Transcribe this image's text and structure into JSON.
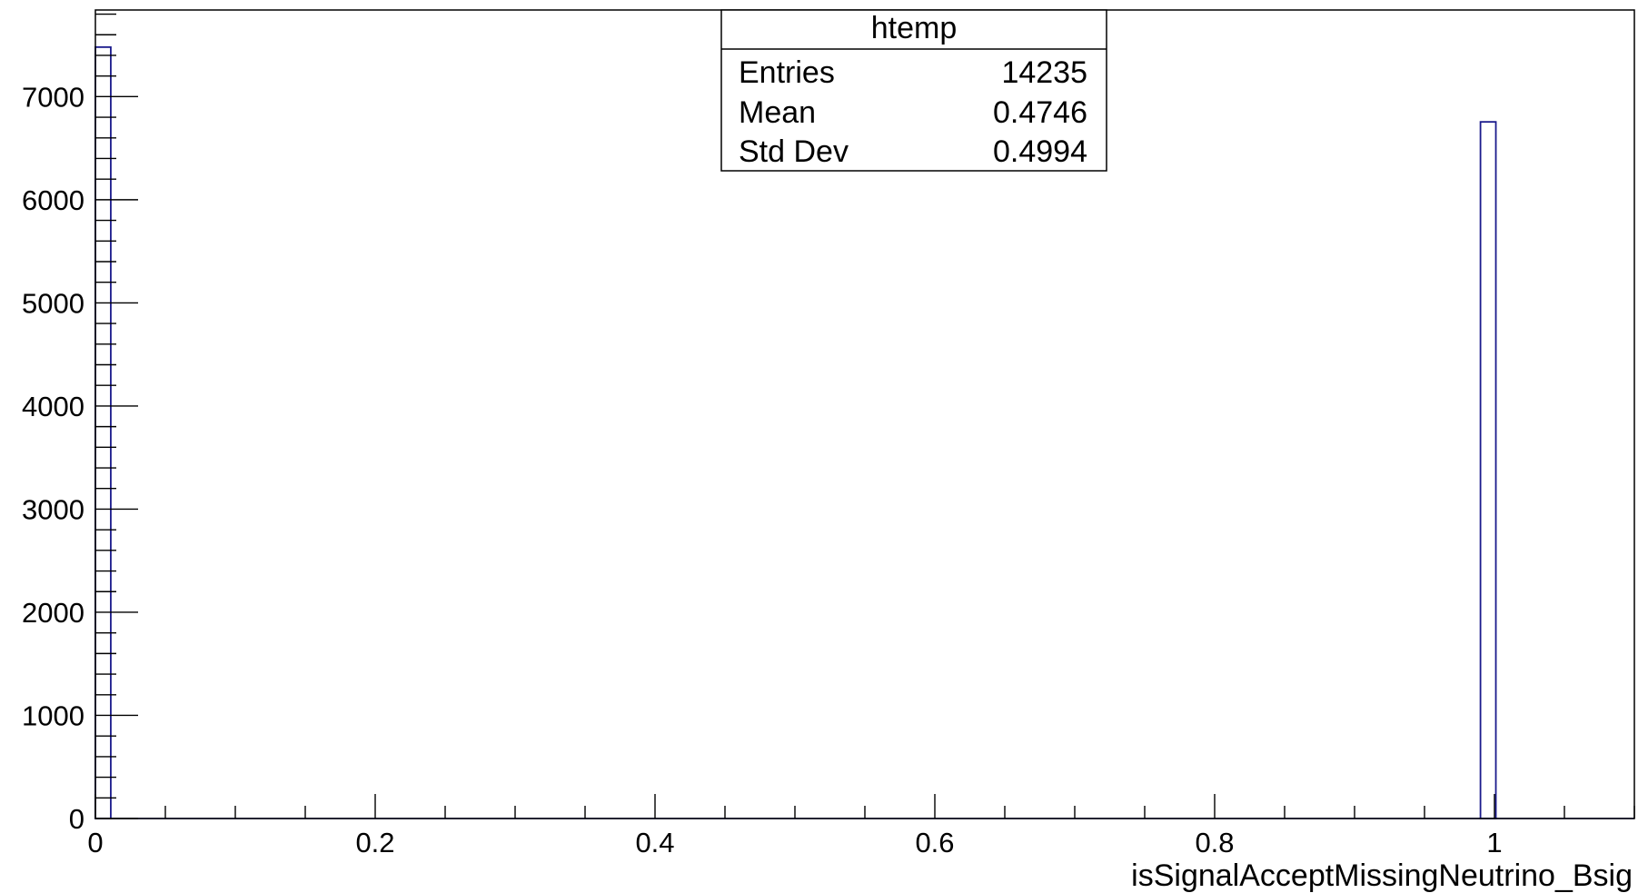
{
  "chart_data": {
    "type": "bar",
    "title": "",
    "xlabel": "isSignalAcceptMissingNeutrino_Bsig",
    "ylabel": "",
    "xlim": [
      0,
      1.1
    ],
    "ylim": [
      0,
      7840
    ],
    "bin_width": 0.011,
    "bins": [
      {
        "x_low": 0.0,
        "x_high": 0.011,
        "count": 7480
      },
      {
        "x_low": 0.99,
        "x_high": 1.001,
        "count": 6755
      }
    ],
    "x_ticks": [
      {
        "value": 0,
        "label": "0"
      },
      {
        "value": 0.2,
        "label": "0.2"
      },
      {
        "value": 0.4,
        "label": "0.4"
      },
      {
        "value": 0.6,
        "label": "0.6"
      },
      {
        "value": 0.8,
        "label": "0.8"
      },
      {
        "value": 1.0,
        "label": "1"
      }
    ],
    "y_ticks": [
      {
        "value": 0,
        "label": "0"
      },
      {
        "value": 1000,
        "label": "1000"
      },
      {
        "value": 2000,
        "label": "2000"
      },
      {
        "value": 3000,
        "label": "3000"
      },
      {
        "value": 4000,
        "label": "4000"
      },
      {
        "value": 5000,
        "label": "5000"
      },
      {
        "value": 6000,
        "label": "6000"
      },
      {
        "value": 7000,
        "label": "7000"
      }
    ],
    "x_minor_step": 0.05,
    "y_minor_step": 200,
    "grid": false,
    "colors": {
      "histogram": "#1a1a8c",
      "axis": "#000000"
    }
  },
  "stats_box": {
    "title": "htemp",
    "rows": [
      {
        "label": "Entries",
        "value": "14235"
      },
      {
        "label": "Mean",
        "value": "0.4746"
      },
      {
        "label": "Std Dev",
        "value": "0.4994"
      }
    ]
  }
}
